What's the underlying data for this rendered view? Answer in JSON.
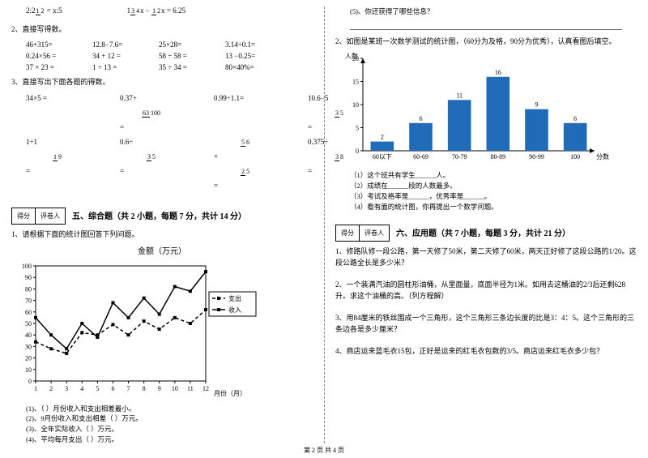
{
  "left": {
    "eq1_a": "2:2½ = x:5",
    "eq1_b": "1¾x − ½x = 6.25",
    "h2": "2、直接写得数。",
    "rows1": [
      [
        "46+315=",
        "12.8−7.6=",
        "25×28=",
        "3.14÷0.1="
      ],
      [
        "0.24×56 =",
        "34 + 12 =",
        "58 ÷ 58 =",
        "13 −0.25="
      ],
      [
        "37 × 23 =",
        "1 ÷ 13 =",
        "35 ÷ 34 =",
        "80×40%="
      ]
    ],
    "h3": "3、直接写出下面各题的得数。",
    "rows2": [
      [
        "34×5 =",
        "0.37 + 63/100 =",
        "0.99÷1.1 =",
        "10.6 − 5⅗ ="
      ],
      [
        "1÷1 1/9 =",
        "0.6÷ 3/5 =",
        "5/6 × 2/5 =",
        "0.375÷ 3/8 ="
      ]
    ],
    "score_a": "得分",
    "score_b": "评卷人",
    "sec5": "五、综合题（共 2 小题，每题 7 分，共计 14 分）",
    "q1": "1、请根据下面的统计图回答下列问题。",
    "chart1_title": "金额（万元）",
    "chart1": {
      "xlabel": "月份（月）",
      "months": [
        1,
        2,
        3,
        4,
        5,
        6,
        7,
        8,
        9,
        10,
        11,
        12
      ],
      "ymax": 100,
      "ystep": 10,
      "legend_out": "支出",
      "legend_in": "收入",
      "series_out": [
        34,
        28,
        24,
        42,
        40,
        49,
        40,
        52,
        45,
        55,
        50,
        62
      ],
      "series_in": [
        55,
        40,
        28,
        50,
        38,
        68,
        55,
        72,
        58,
        82,
        78,
        95
      ]
    },
    "sub1": "(1)、（ ）月份收入和支出相差最小。",
    "sub2": "(2)、9月份收入和支出相差（ ）万元。",
    "sub3": "(3)、全年实际收入（ ）万元。",
    "sub4": "(4)、平均每月支出（ ）万元。"
  },
  "right": {
    "sub5": "(5)、你还获得了哪些信息？",
    "q2": "2、如图是某班一次数学测试的统计图，（60分为及格，90分为优秀），认真看图后填空。",
    "chart2": {
      "ylabel": "人数",
      "xlabel": "分数",
      "cats": [
        "60以下",
        "60-69",
        "70-79",
        "80-89",
        "90-99",
        "100"
      ],
      "vals": [
        2,
        6,
        11,
        16,
        9,
        6
      ],
      "ymax": 20,
      "ystep": 5,
      "bar_color": "#1f6bb8"
    },
    "r1": "（1）这个班共有学生______人。",
    "r2": "（2）成绩在______段的人数最多。",
    "r3": "（3）考试及格率是______，优秀率是______。",
    "r4": "（4）看有面的统计图，你再提出一个数学问题。",
    "score_a": "得分",
    "score_b": "评卷人",
    "sec6": "六、应用题（共 7 小题，每题 3 分，共计 21 分）",
    "a1": "1、修路队修一段公路，第一天修了50米，第二天修了60米，两天正好修了这段公路的1/20。这段公路全长是多少米？",
    "a2": "2、一个装满汽油的圆柱形油桶，从里面量，底面半径为1米。如用去这桶油的2/3后还剩628升。求这个油桶的高。（列方程解）",
    "a3": "3、用84厘米的铁丝围成一个三角形，这个三角形三条边长度的比是3：4：5。这个三角形的三条边各是多少厘米？",
    "a4": "4、商店运来蓝毛衣15包，正好是运来的红毛衣包数的3/5。商店运来红毛衣多少包？"
  },
  "footer": "第 2 页  共 4 页"
}
